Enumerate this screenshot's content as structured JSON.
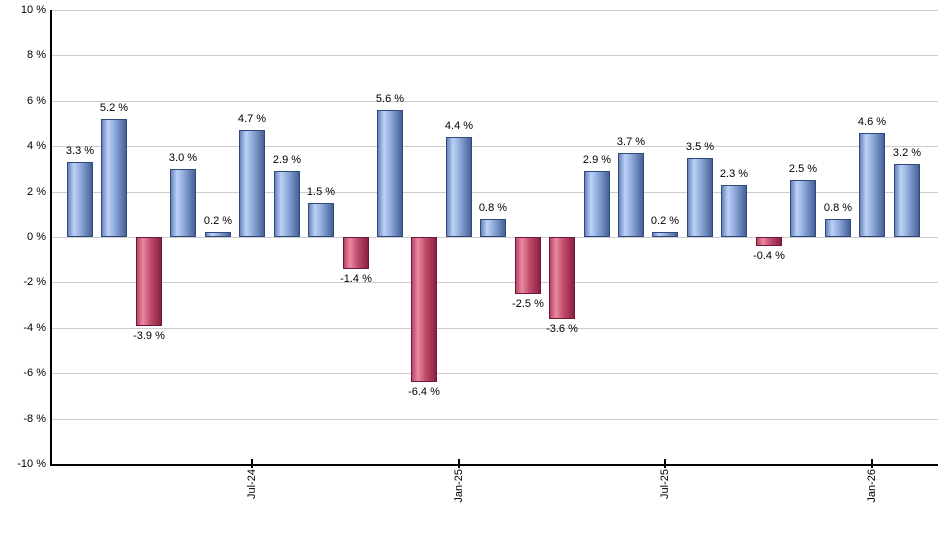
{
  "chart_data": {
    "type": "bar",
    "title": "",
    "xlabel": "",
    "ylabel": "",
    "ylim": [
      -10,
      10
    ],
    "y_step": 2,
    "grid": true,
    "legend": "none",
    "y_tick_labels": [
      "10 %",
      "8 %",
      "6 %",
      "4 %",
      "2 %",
      "0 %",
      "-2 %",
      "-4 %",
      "-6 %",
      "-8 %",
      "-10 %"
    ],
    "y_tick_values": [
      10,
      8,
      6,
      4,
      2,
      0,
      -2,
      -4,
      -6,
      -8,
      -10
    ],
    "values": [
      3.3,
      5.2,
      -3.9,
      3.0,
      0.2,
      4.7,
      2.9,
      1.5,
      -1.4,
      5.6,
      -6.4,
      4.4,
      0.8,
      -2.5,
      -3.6,
      2.9,
      3.7,
      0.2,
      3.5,
      2.3,
      -0.4,
      2.5,
      0.8,
      4.6,
      3.2
    ],
    "bar_labels": [
      "3.3 %",
      "5.2 %",
      "-3.9 %",
      "3.0 %",
      "0.2 %",
      "4.7 %",
      "2.9 %",
      "1.5 %",
      "-1.4 %",
      "5.6 %",
      "-6.4 %",
      "4.4 %",
      "0.8 %",
      "-2.5 %",
      "-3.6 %",
      "2.9 %",
      "3.7 %",
      "0.2 %",
      "3.5 %",
      "2.3 %",
      "-0.4 %",
      "2.5 %",
      "0.8 %",
      "4.6 %",
      "3.2 %"
    ],
    "x_tick_labels": [
      {
        "label": "Jul-24",
        "bar_index": 5
      },
      {
        "label": "Jan-25",
        "bar_index": 11
      },
      {
        "label": "Jul-25",
        "bar_index": 17
      },
      {
        "label": "Jan-26",
        "bar_index": 23
      }
    ],
    "colors": {
      "positive_border": "#2e4a7c",
      "positive_gradient": [
        "#6884bc",
        "#bdd1f5",
        "#8ba7d9",
        "#476197"
      ],
      "negative_border": "#70163a",
      "negative_gradient": [
        "#b84465",
        "#ea89a0",
        "#c34e6e",
        "#8b2042"
      ],
      "gridline": "#cccccc",
      "axis": "#000000",
      "label_text": "#000000",
      "background": "#ffffff"
    }
  }
}
